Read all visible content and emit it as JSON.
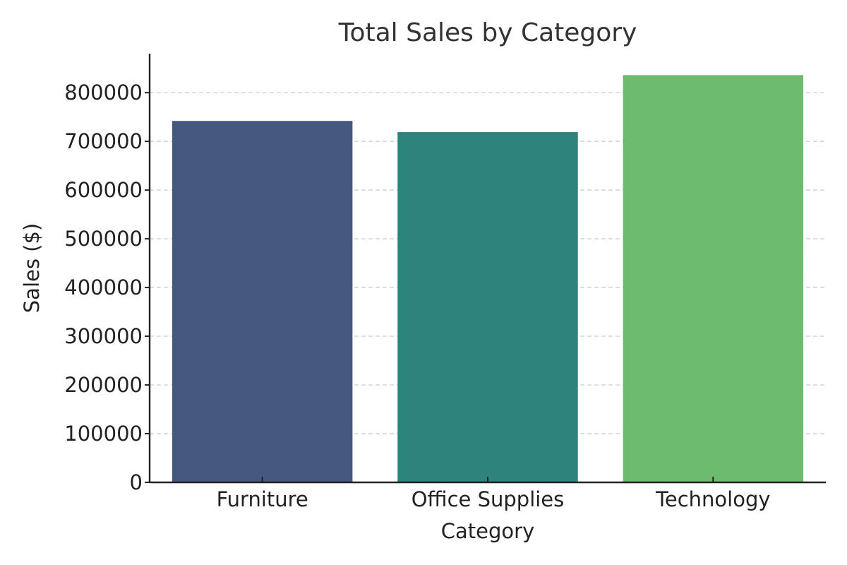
{
  "chart_data": {
    "type": "bar",
    "title": "Total Sales by Category",
    "xlabel": "Category",
    "ylabel": "Sales ($)",
    "categories": [
      "Furniture",
      "Office Supplies",
      "Technology"
    ],
    "values": [
      742000,
      719000,
      836000
    ],
    "colors": [
      "#46587e",
      "#2e847d",
      "#6cbb6e"
    ],
    "ylim": [
      0,
      880000
    ],
    "yticks": [
      0,
      100000,
      200000,
      300000,
      400000,
      500000,
      600000,
      700000,
      800000
    ],
    "ytick_labels": [
      "0",
      "100000",
      "200000",
      "300000",
      "400000",
      "500000",
      "600000",
      "700000",
      "800000"
    ],
    "grid": "y-dashed",
    "legend": "none"
  }
}
